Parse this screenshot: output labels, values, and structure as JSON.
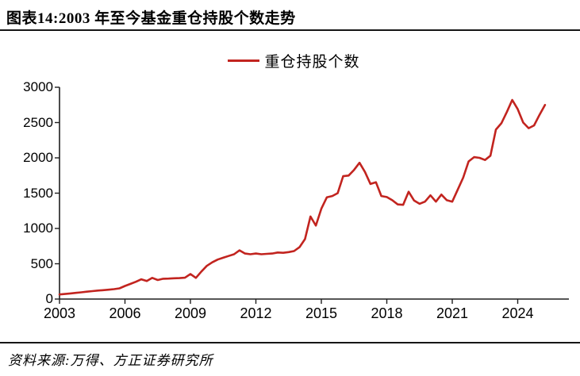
{
  "header": {
    "title": "图表14:2003 年至今基金重仓持股个数走势"
  },
  "footer": {
    "source": "资料来源:万得、方正证券研究所"
  },
  "colors": {
    "line": "#c2241f",
    "axis": "#1f1f1f",
    "text": "#000000",
    "background": "#ffffff"
  },
  "chart_data": {
    "type": "line",
    "title": "图表14:2003 年至今基金重仓持股个数走势",
    "legend": "重仓持股个数",
    "legend_position": "top-center",
    "xlabel": "",
    "ylabel": "",
    "grid": false,
    "x_start_year": 2003,
    "x_step_years": 0.25,
    "x_ticks": [
      2003,
      2006,
      2009,
      2012,
      2015,
      2018,
      2021,
      2024
    ],
    "y_ticks": [
      0,
      500,
      1000,
      1500,
      2000,
      2500,
      3000
    ],
    "ylim": [
      0,
      3000
    ],
    "line_color": "#c2241f",
    "series_name": "重仓持股个数",
    "values": [
      65,
      72,
      80,
      88,
      96,
      104,
      112,
      120,
      126,
      133,
      140,
      152,
      185,
      215,
      245,
      280,
      255,
      300,
      270,
      288,
      290,
      294,
      297,
      302,
      355,
      300,
      390,
      470,
      520,
      560,
      585,
      610,
      635,
      690,
      645,
      635,
      645,
      635,
      640,
      645,
      660,
      655,
      665,
      680,
      735,
      850,
      1170,
      1040,
      1280,
      1440,
      1460,
      1500,
      1740,
      1750,
      1830,
      1930,
      1800,
      1630,
      1655,
      1460,
      1445,
      1400,
      1340,
      1335,
      1520,
      1395,
      1350,
      1380,
      1470,
      1380,
      1480,
      1400,
      1380,
      1550,
      1720,
      1950,
      2010,
      2000,
      1970,
      2030,
      2400,
      2490,
      2650,
      2820,
      2690,
      2500,
      2420,
      2460,
      2610,
      2750
    ]
  }
}
